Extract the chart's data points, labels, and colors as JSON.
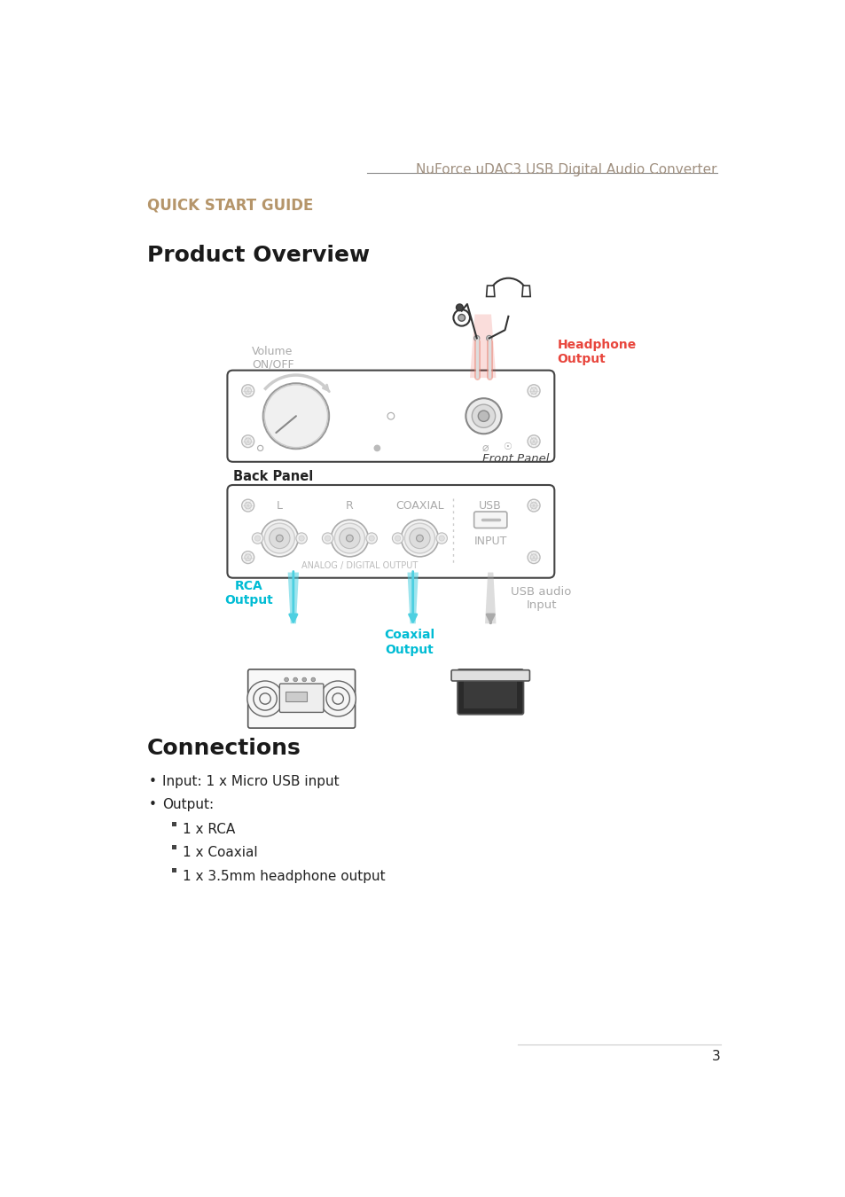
{
  "page_title": "NuForce uDAC3 USB Digital Audio Converter",
  "quick_start": "QUICK START GUIDE",
  "product_overview": "Product Overview",
  "connections_title": "Connections",
  "front_panel_label": "Front Panel",
  "back_panel_label": "Back Panel",
  "volume_label": "Volume\nON/OFF",
  "headphone_output_label": "Headphone\nOutput",
  "rca_output_label": "RCA\nOutput",
  "coaxial_output_label": "Coaxial\nOutput",
  "usb_audio_input_label": "USB audio\nInput",
  "analog_digital_label": "ANALOG / DIGITAL OUTPUT",
  "usb_label": "USB",
  "input_label": "INPUT",
  "l_label": "L",
  "r_label": "R",
  "coaxial_label": "COAXIAL",
  "bullet1": "Input: 1 x Micro USB input",
  "bullet2": "Output:",
  "sub1": "1 x RCA",
  "sub2": "1 x Coaxial",
  "sub3": "1 x 3.5mm headphone output",
  "page_number": "3",
  "bg_color": "#ffffff",
  "title_color": "#a09080",
  "quick_start_color": "#b5956a",
  "section_title_color": "#1a1a1a",
  "headphone_color": "#e8453c",
  "rca_color": "#00bcd4",
  "coaxial_color": "#00bcd4",
  "usb_input_color": "#aaaaaa",
  "panel_stroke": "#444444",
  "panel_fill": "#ffffff",
  "label_gray": "#aaaaaa",
  "text_dark": "#222222",
  "screw_color": "#dddddd",
  "knob_fill": "#f0f0f0",
  "jack_fill": "#eeeeee"
}
